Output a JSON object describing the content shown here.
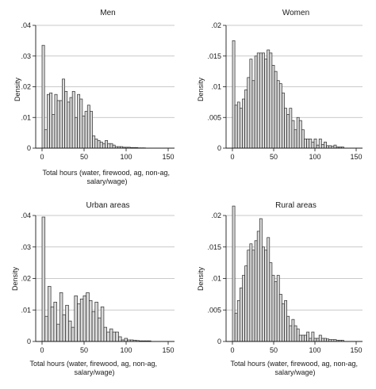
{
  "chart_data": [
    {
      "type": "bar",
      "title": "Men",
      "xlabel": "",
      "ylabel": "Density",
      "xlim": [
        0,
        150
      ],
      "ylim": [
        0,
        0.04
      ],
      "yticks": [
        0,
        0.01,
        0.02,
        0.03,
        0.04
      ],
      "ytick_labels": [
        "0",
        ".01",
        ".02",
        ".03",
        ".04"
      ],
      "xticks": [
        0,
        50,
        100,
        150
      ],
      "xtick_labels": [
        "0",
        "50",
        "100",
        "150"
      ],
      "grid": true,
      "bin_width": 3,
      "bin_starts": [
        0,
        3,
        6,
        9,
        12,
        15,
        18,
        21,
        24,
        27,
        30,
        33,
        36,
        39,
        42,
        45,
        48,
        51,
        54,
        57,
        60,
        63,
        66,
        69,
        72,
        75,
        78,
        81,
        84,
        87,
        90,
        93,
        96,
        99,
        102,
        105,
        108,
        111,
        114,
        117,
        120
      ],
      "values": [
        0.0335,
        0.006,
        0.0175,
        0.018,
        0.011,
        0.0175,
        0.0155,
        0.0155,
        0.0225,
        0.0185,
        0.015,
        0.0165,
        0.0185,
        0.01,
        0.0175,
        0.016,
        0.0105,
        0.012,
        0.014,
        0.012,
        0.004,
        0.003,
        0.0025,
        0.002,
        0.0015,
        0.0025,
        0.0015,
        0.0015,
        0.001,
        0.0005,
        0.0005,
        0.0005,
        0.0003,
        0.0003,
        0.0003,
        0.0002,
        0.0002,
        0.0002,
        0.0001,
        0.0001,
        0.0001
      ]
    },
    {
      "type": "bar",
      "title": "Women",
      "xlabel": "",
      "ylabel": "Density",
      "xlim": [
        0,
        150
      ],
      "ylim": [
        0,
        0.02
      ],
      "yticks": [
        0,
        0.005,
        0.01,
        0.015,
        0.02
      ],
      "ytick_labels": [
        "0",
        ".005",
        ".01",
        ".015",
        ".02"
      ],
      "xticks": [
        0,
        50,
        100,
        150
      ],
      "xtick_labels": [
        "0",
        "50",
        "100",
        "150"
      ],
      "grid": true,
      "bin_width": 3,
      "bin_starts": [
        0,
        3,
        6,
        9,
        12,
        15,
        18,
        21,
        24,
        27,
        30,
        33,
        36,
        39,
        42,
        45,
        48,
        51,
        54,
        57,
        60,
        63,
        66,
        69,
        72,
        75,
        78,
        81,
        84,
        87,
        90,
        93,
        96,
        99,
        102,
        105,
        108,
        111,
        114,
        117,
        120,
        123,
        126,
        129,
        132
      ],
      "values": [
        0.0175,
        0.007,
        0.0075,
        0.0065,
        0.008,
        0.0095,
        0.0115,
        0.0145,
        0.011,
        0.015,
        0.0155,
        0.0155,
        0.0155,
        0.0145,
        0.016,
        0.0155,
        0.0135,
        0.0125,
        0.011,
        0.0105,
        0.009,
        0.0065,
        0.0055,
        0.0065,
        0.0045,
        0.003,
        0.005,
        0.0045,
        0.003,
        0.0015,
        0.0015,
        0.0015,
        0.001,
        0.0015,
        0.0005,
        0.0015,
        0.0006,
        0.001,
        0.0004,
        0.0004,
        0.0003,
        0.0005,
        0.0002,
        0.0002,
        0.0002
      ]
    },
    {
      "type": "bar",
      "title": "Urban areas",
      "xlabel": "Total hours (water, firewood, ag, non-ag, salary/wage)",
      "ylabel": "Density",
      "xlim": [
        0,
        150
      ],
      "ylim": [
        0,
        0.04
      ],
      "yticks": [
        0,
        0.01,
        0.02,
        0.03,
        0.04
      ],
      "ytick_labels": [
        "0",
        ".01",
        ".02",
        ".03",
        ".04"
      ],
      "xticks": [
        0,
        50,
        100,
        150
      ],
      "xtick_labels": [
        "0",
        "50",
        "100",
        "150"
      ],
      "grid": true,
      "bin_width": 3.5,
      "bin_starts": [
        0,
        3.5,
        7,
        10.5,
        14,
        17.5,
        21,
        24.5,
        28,
        31.5,
        35,
        38.5,
        42,
        45.5,
        49,
        52.5,
        56,
        59.5,
        63,
        66.5,
        70,
        73.5,
        77,
        80.5,
        84,
        87.5,
        91,
        94.5,
        98,
        101.5,
        105,
        108.5,
        112,
        115.5,
        119,
        122.5,
        126
      ],
      "values": [
        0.0395,
        0.008,
        0.0175,
        0.011,
        0.0125,
        0.0055,
        0.0155,
        0.0085,
        0.0115,
        0.0065,
        0.0045,
        0.0145,
        0.012,
        0.0135,
        0.0145,
        0.0155,
        0.013,
        0.0095,
        0.0125,
        0.0075,
        0.011,
        0.0045,
        0.003,
        0.004,
        0.003,
        0.003,
        0.0015,
        0.0005,
        0.001,
        0.0005,
        0.0005,
        0.0004,
        0.0003,
        0.0002,
        0.0002,
        0.0002,
        0.0002
      ]
    },
    {
      "type": "bar",
      "title": "Rural areas",
      "xlabel": "Total hours (water, firewood, ag, non-ag, salary/wage)",
      "ylabel": "Density",
      "xlim": [
        0,
        150
      ],
      "ylim": [
        0,
        0.02
      ],
      "yticks": [
        0,
        0.005,
        0.01,
        0.015,
        0.02
      ],
      "ytick_labels": [
        "0",
        ".005",
        ".01",
        ".015",
        ".02"
      ],
      "xticks": [
        0,
        50,
        100,
        150
      ],
      "xtick_labels": [
        "0",
        "50",
        "100",
        "150"
      ],
      "grid": true,
      "bin_width": 3,
      "bin_starts": [
        0,
        3,
        6,
        9,
        12,
        15,
        18,
        21,
        24,
        27,
        30,
        33,
        36,
        39,
        42,
        45,
        48,
        51,
        54,
        57,
        60,
        63,
        66,
        69,
        72,
        75,
        78,
        81,
        84,
        87,
        90,
        93,
        96,
        99,
        102,
        105,
        108,
        111,
        114,
        117,
        120,
        123,
        126,
        129,
        132
      ],
      "values": [
        0.0215,
        0.0045,
        0.0065,
        0.0085,
        0.0105,
        0.012,
        0.0145,
        0.0155,
        0.0145,
        0.016,
        0.0175,
        0.0195,
        0.015,
        0.0145,
        0.0165,
        0.0125,
        0.0105,
        0.0095,
        0.0105,
        0.0075,
        0.006,
        0.0065,
        0.004,
        0.0025,
        0.0035,
        0.0025,
        0.002,
        0.001,
        0.001,
        0.001,
        0.0015,
        0.0005,
        0.0015,
        0.0005,
        0.0005,
        0.001,
        0.0005,
        0.0005,
        0.0004,
        0.0003,
        0.0003,
        0.0003,
        0.0002,
        0.0002,
        0.0002
      ]
    }
  ]
}
